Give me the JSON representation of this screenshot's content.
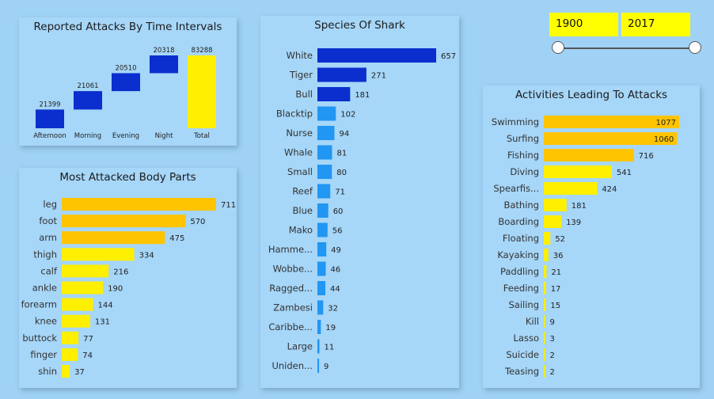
{
  "slider": {
    "from": "1900",
    "to": "2017"
  },
  "colors": {
    "dark_blue": "#0a2fce",
    "mid_blue": "#2196f3",
    "orange": "#ffc400",
    "yellow": "#ffef00"
  },
  "chart_data": [
    {
      "type": "bar",
      "id": "time",
      "title": "Reported Attacks By Time Intervals",
      "categories": [
        "Afternoon",
        "Morning",
        "Evening",
        "Night",
        "Total"
      ],
      "values": [
        21399,
        21061,
        20510,
        20318,
        83288
      ],
      "style": "waterfall"
    },
    {
      "type": "bar",
      "id": "body",
      "title": "Most Attacked Body Parts",
      "orientation": "horizontal",
      "categories": [
        "leg",
        "foot",
        "arm",
        "thigh",
        "calf",
        "ankle",
        "forearm",
        "knee",
        "buttock",
        "finger",
        "shin"
      ],
      "values": [
        711,
        570,
        475,
        334,
        216,
        190,
        144,
        131,
        77,
        74,
        37
      ]
    },
    {
      "type": "bar",
      "id": "species",
      "title": "Species Of Shark",
      "orientation": "horizontal",
      "categories": [
        "White",
        "Tiger",
        "Bull",
        "Blacktip",
        "Nurse",
        "Whale",
        "Small",
        "Reef",
        "Blue",
        "Mako",
        "Hamme...",
        "Wobbe...",
        "Ragged...",
        "Zambesi",
        "Caribbe...",
        "Large",
        "Uniden..."
      ],
      "values": [
        657,
        271,
        181,
        102,
        94,
        81,
        80,
        71,
        60,
        56,
        49,
        46,
        44,
        32,
        19,
        11,
        9
      ]
    },
    {
      "type": "bar",
      "id": "activity",
      "title": "Activities Leading To Attacks",
      "orientation": "horizontal",
      "categories": [
        "Swimming",
        "Surfing",
        "Fishing",
        "Diving",
        "Spearfis...",
        "Bathing",
        "Boarding",
        "Floating",
        "Kayaking",
        "Paddling",
        "Feeding",
        "Sailing",
        "Kill",
        "Lasso",
        "Suicide",
        "Teasing"
      ],
      "values": [
        1077,
        1060,
        716,
        541,
        424,
        181,
        139,
        52,
        36,
        21,
        17,
        15,
        9,
        3,
        2,
        2
      ]
    }
  ]
}
